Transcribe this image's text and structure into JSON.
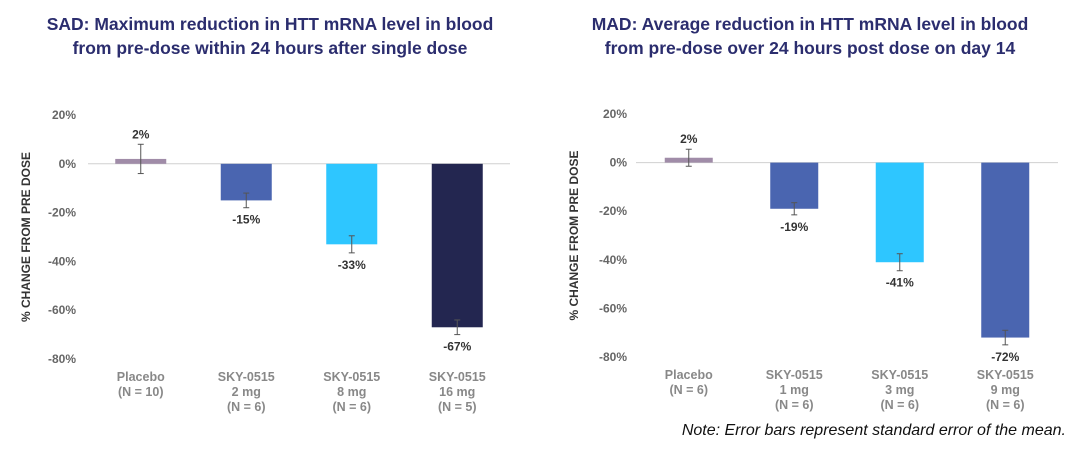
{
  "chart_data": [
    {
      "type": "bar",
      "title_lines": [
        "SAD: Maximum reduction in HTT mRNA level in blood",
        "from pre-dose within 24 hours after single dose"
      ],
      "ylabel": "% CHANGE FROM PRE DOSE",
      "ylim": [
        -80,
        20
      ],
      "yticks": [
        "20%",
        "0%",
        "-20%",
        "-40%",
        "-60%",
        "-80%"
      ],
      "ytick_values": [
        20,
        0,
        -20,
        -40,
        -60,
        -80
      ],
      "categories": [
        [
          "Placebo",
          "(N = 10)"
        ],
        [
          "SKY-0515",
          "2 mg",
          "(N = 6)"
        ],
        [
          "SKY-0515",
          "8 mg",
          "(N = 6)"
        ],
        [
          "SKY-0515",
          "16 mg",
          "(N = 5)"
        ]
      ],
      "values": [
        2,
        -15,
        -33,
        -67
      ],
      "data_labels": [
        "2%",
        "-15%",
        "-33%",
        "-67%"
      ],
      "error": [
        6,
        3,
        3.5,
        3
      ],
      "colors": [
        "#a08ca8",
        "#4a65b0",
        "#2ec6ff",
        "#232650"
      ]
    },
    {
      "type": "bar",
      "title_lines": [
        "MAD: Average reduction in HTT mRNA level in blood",
        "from pre-dose over 24 hours post dose on day 14"
      ],
      "ylabel": "% CHANGE FROM PRE DOSE",
      "ylim": [
        -80,
        20
      ],
      "yticks": [
        "20%",
        "0%",
        "-20%",
        "-40%",
        "-60%",
        "-80%"
      ],
      "ytick_values": [
        20,
        0,
        -20,
        -40,
        -60,
        -80
      ],
      "categories": [
        [
          "Placebo",
          "(N = 6)"
        ],
        [
          "SKY-0515",
          "1 mg",
          "(N = 6)"
        ],
        [
          "SKY-0515",
          "3 mg",
          "(N = 6)"
        ],
        [
          "SKY-0515",
          "9 mg",
          "(N = 6)"
        ]
      ],
      "values": [
        2,
        -19,
        -41,
        -72
      ],
      "data_labels": [
        "2%",
        "-19%",
        "-41%",
        "-72%"
      ],
      "error": [
        3.5,
        2.5,
        3.5,
        3
      ],
      "colors": [
        "#a08ca8",
        "#4a65b0",
        "#2ec6ff",
        "#4a65b0"
      ]
    }
  ],
  "note": "Note: Error bars represent standard error of the mean."
}
